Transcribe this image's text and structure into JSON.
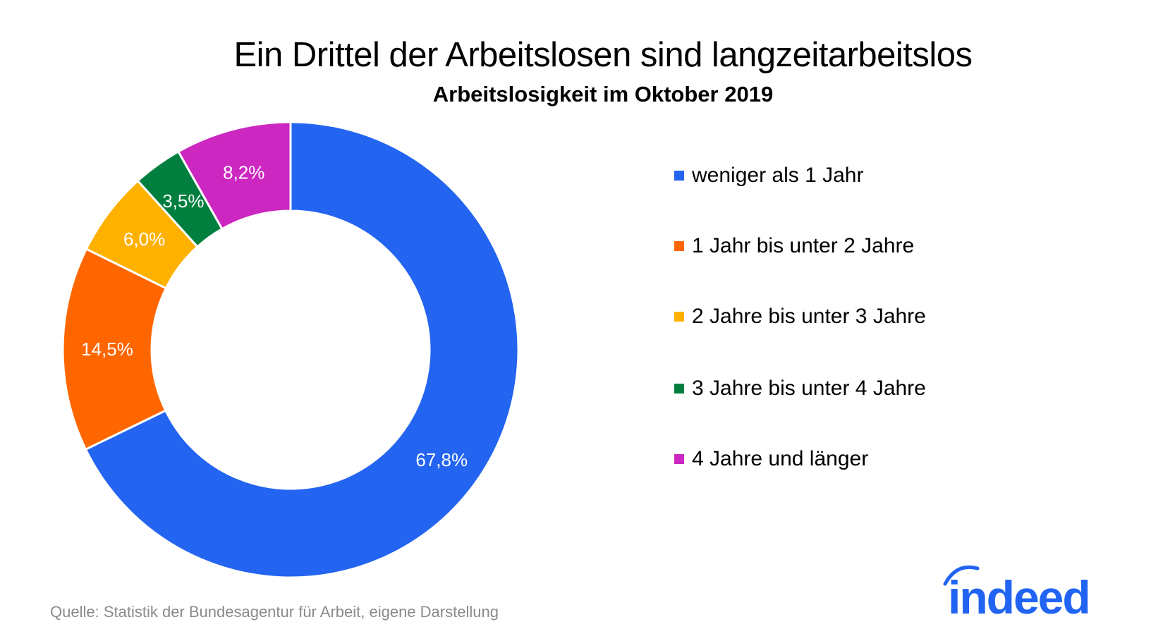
{
  "chart_data": {
    "type": "pie",
    "donut": true,
    "title": "Ein Drittel der Arbeitslosen sind langzeitarbeitslos",
    "subtitle": "Arbeitslosigkeit im Oktober 2019",
    "categories": [
      "weniger als 1 Jahr",
      "1 Jahr bis unter 2 Jahre",
      "2 Jahre bis unter 3 Jahre",
      "3 Jahre bis unter 4 Jahre",
      "4 Jahre und länger"
    ],
    "values": [
      67.8,
      14.5,
      6.0,
      3.5,
      8.2
    ],
    "data_labels": [
      "67,8%",
      "14,5%",
      "6,0%",
      "3,5%",
      "8,2%"
    ],
    "colors": [
      "#2364f0",
      "#ff6600",
      "#ffb100",
      "#007f3e",
      "#cc27c0"
    ],
    "legend_position": "right",
    "start_angle": "top, clockwise"
  },
  "source": "Quelle: Statistik der Bundesagentur für Arbeit, eigene Darstellung",
  "logo": {
    "text": "indeed",
    "color": "#2164f3"
  }
}
